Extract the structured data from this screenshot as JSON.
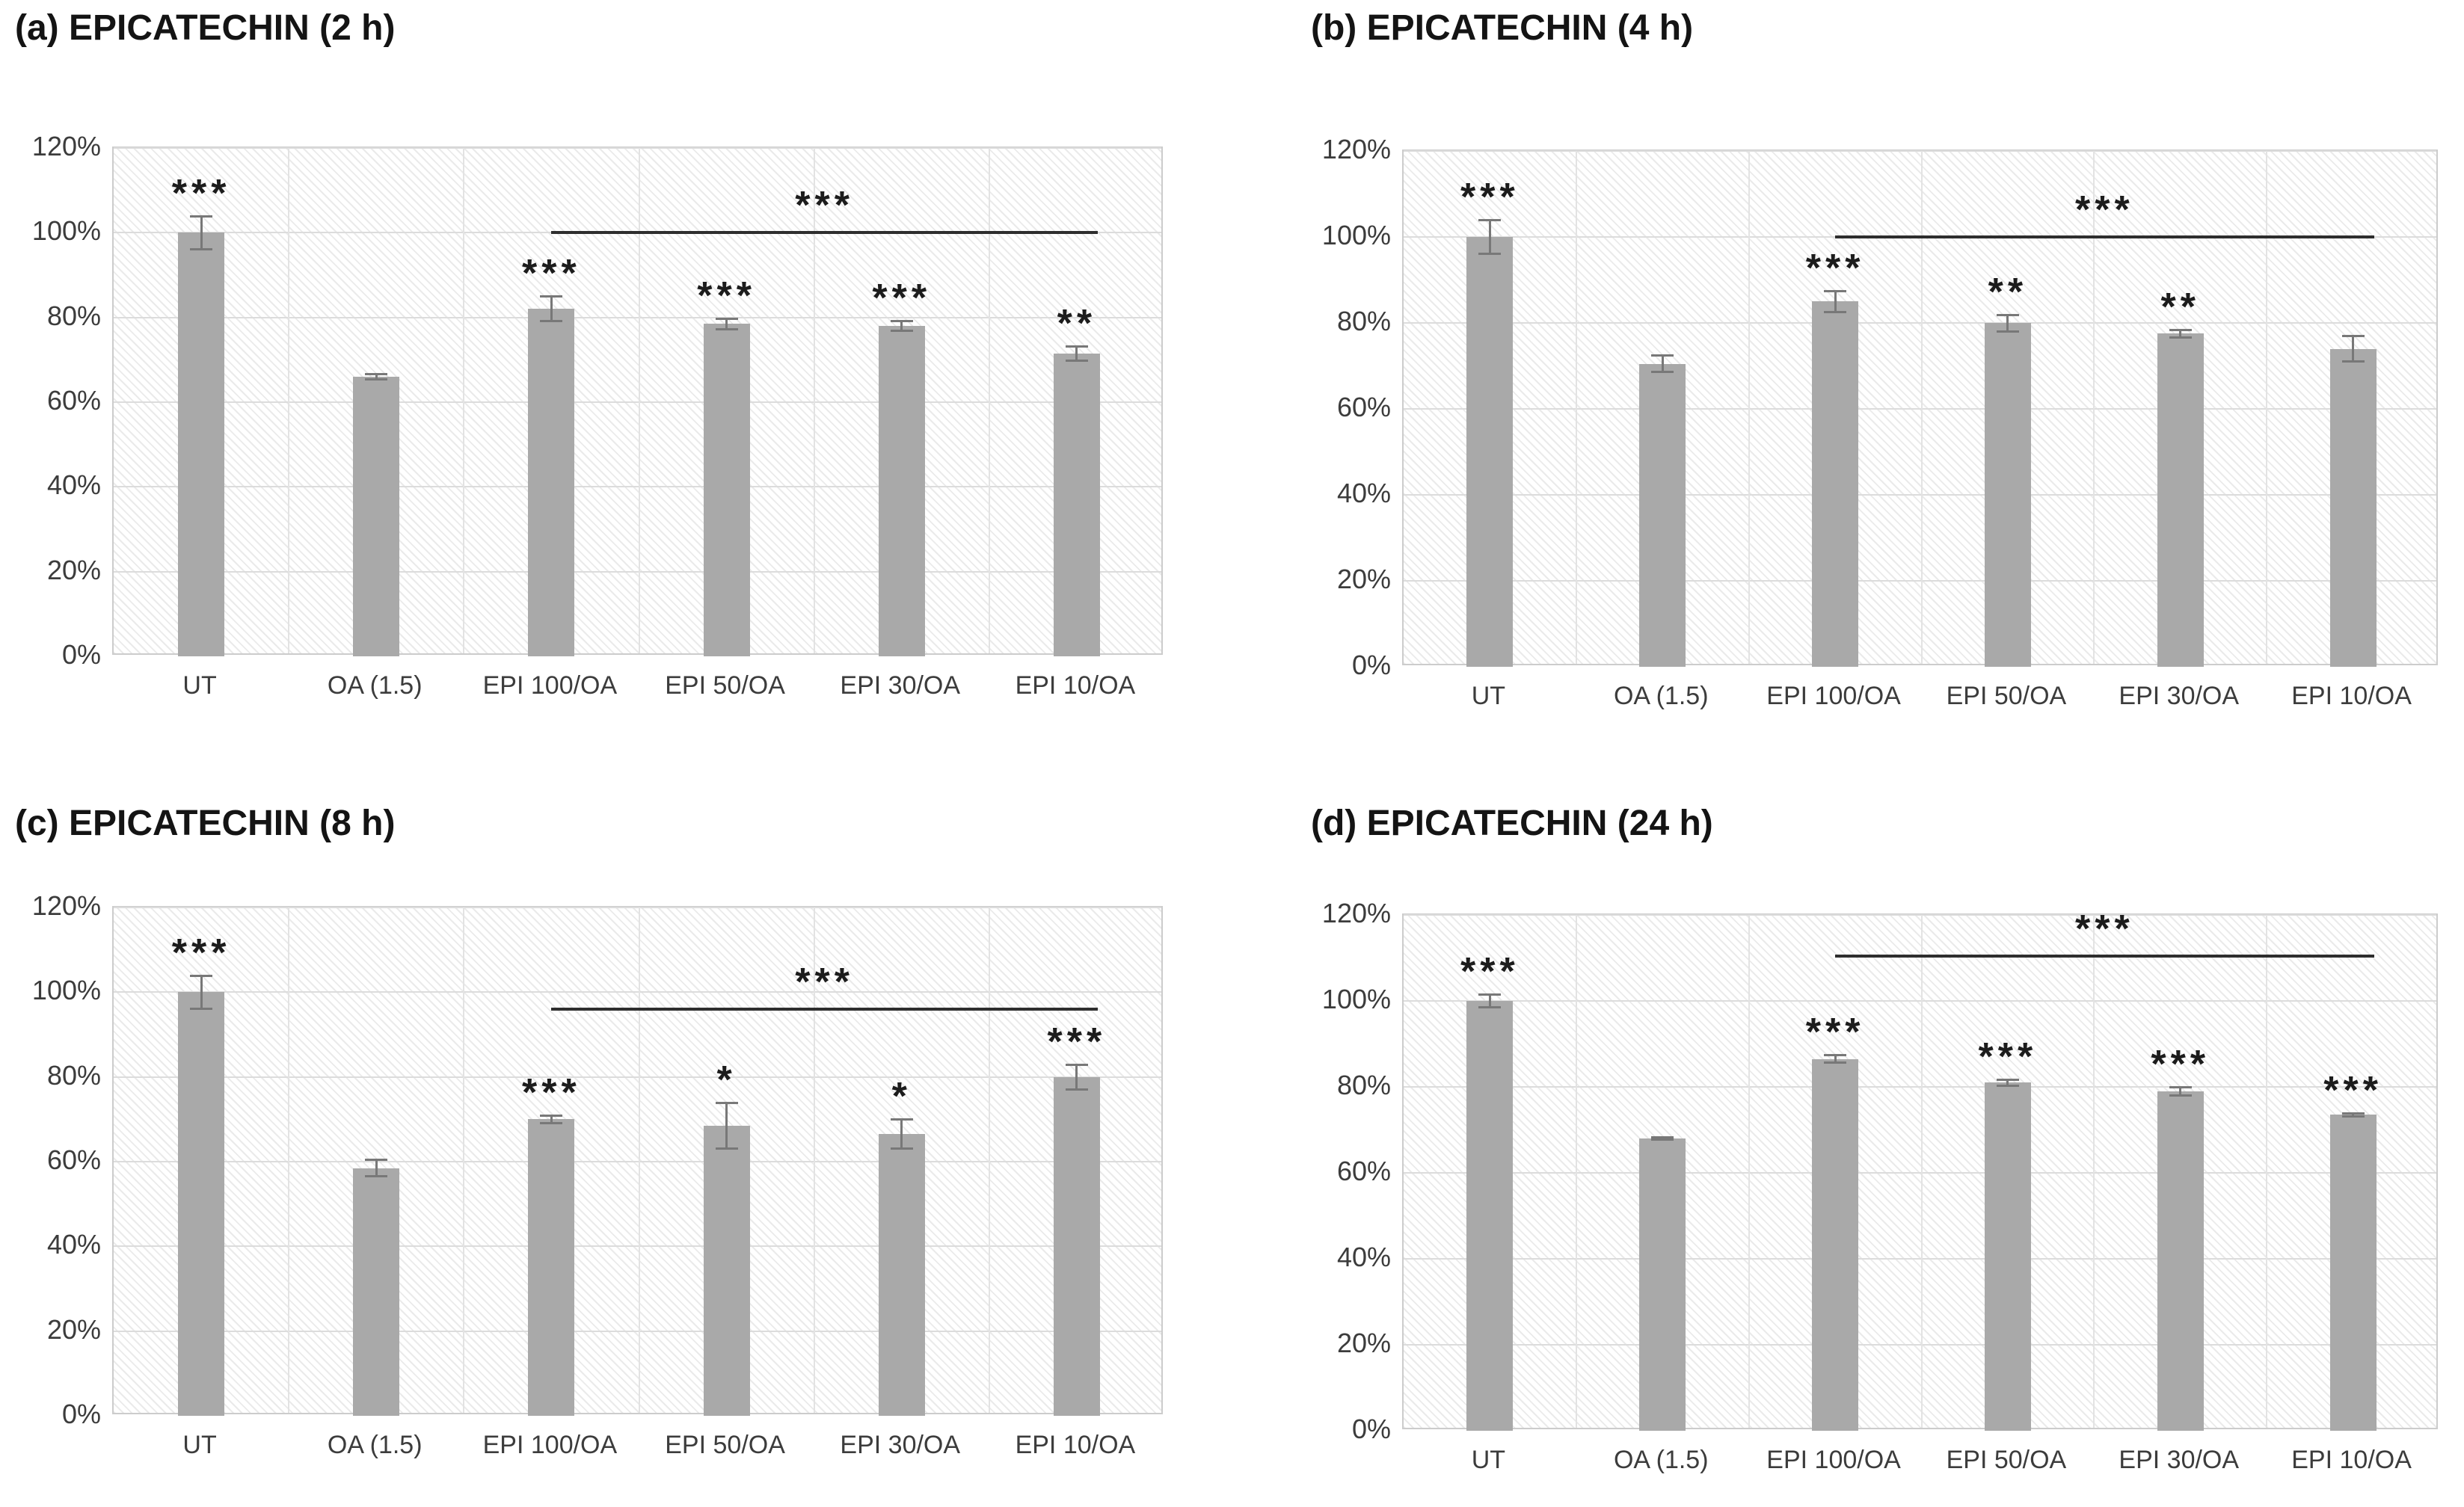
{
  "colors": {
    "bar": "#a9a9a9",
    "error_bar": "#787878",
    "gridline": "#dcdcdc",
    "plot_border": "#cccccc",
    "bracket_line": "#2e2e2e",
    "text": "#3c3c3c",
    "title_text": "#141414"
  },
  "chart_data": [
    {
      "panel": "a",
      "type": "bar",
      "title": "(a) EPICATECHIN (2 h)",
      "categories": [
        "UT",
        "OA (1.5)",
        "EPI 100/OA",
        "EPI 50/OA",
        "EPI 30/OA",
        "EPI 10/OA"
      ],
      "values": [
        100,
        66,
        82,
        78.5,
        78,
        71.5
      ],
      "errors": [
        4,
        0.7,
        3,
        1.3,
        1.3,
        1.8
      ],
      "sig": [
        "***",
        "",
        "***",
        "***",
        "***",
        "**"
      ],
      "bracket": {
        "from_index": 2,
        "to_index": 5,
        "y": 100,
        "label": "***"
      },
      "ylim": [
        0,
        120
      ],
      "ytick_step": 20,
      "ytick_labels": [
        "120%",
        "100%",
        "80%",
        "60%",
        "40%",
        "20%",
        "0%"
      ],
      "grid": true,
      "legend": null
    },
    {
      "panel": "b",
      "type": "bar",
      "title": "(b) EPICATECHIN (4 h)",
      "categories": [
        "UT",
        "OA (1.5)",
        "EPI 100/OA",
        "EPI 50/OA",
        "EPI 30/OA",
        "EPI 10/OA"
      ],
      "values": [
        100,
        70.5,
        85,
        80,
        77.5,
        74
      ],
      "errors": [
        4,
        2,
        2.5,
        2,
        1,
        3
      ],
      "sig": [
        "***",
        "",
        "***",
        "**",
        "**",
        ""
      ],
      "bracket": {
        "from_index": 2,
        "to_index": 5,
        "y": 100,
        "label": "***"
      },
      "ylim": [
        0,
        120
      ],
      "ytick_step": 20,
      "ytick_labels": [
        "120%",
        "100%",
        "80%",
        "60%",
        "40%",
        "20%",
        "0%"
      ],
      "grid": true,
      "legend": null
    },
    {
      "panel": "c",
      "type": "bar",
      "title": "(c) EPICATECHIN (8 h)",
      "categories": [
        "UT",
        "OA (1.5)",
        "EPI 100/OA",
        "EPI 50/OA",
        "EPI 30/OA",
        "EPI 10/OA"
      ],
      "values": [
        100,
        58.5,
        70,
        68.5,
        66.5,
        80
      ],
      "errors": [
        4,
        2,
        1,
        5.5,
        3.5,
        3
      ],
      "sig": [
        "***",
        "",
        "***",
        "*",
        "*",
        "***"
      ],
      "bracket": {
        "from_index": 2,
        "to_index": 5,
        "y": 96,
        "label": "***"
      },
      "ylim": [
        0,
        120
      ],
      "ytick_step": 20,
      "ytick_labels": [
        "120%",
        "100%",
        "80%",
        "60%",
        "40%",
        "20%",
        "0%"
      ],
      "grid": true,
      "legend": null
    },
    {
      "panel": "d",
      "type": "bar",
      "title": "(d) EPICATECHIN (24 h)",
      "categories": [
        "UT",
        "OA (1.5)",
        "EPI 100/OA",
        "EPI 50/OA",
        "EPI 30/OA",
        "EPI 10/OA"
      ],
      "values": [
        100,
        68,
        86.5,
        81,
        79,
        73.5
      ],
      "errors": [
        1.5,
        0.4,
        1,
        0.8,
        1,
        0.4
      ],
      "sig": [
        "***",
        "",
        "***",
        "***",
        "***",
        "***"
      ],
      "bracket": {
        "from_index": 2,
        "to_index": 5,
        "y": 110.5,
        "label": "***"
      },
      "ylim": [
        0,
        120
      ],
      "ytick_step": 20,
      "ytick_labels": [
        "120%",
        "100%",
        "80%",
        "60%",
        "40%",
        "20%",
        "0%"
      ],
      "grid": true,
      "legend": null
    }
  ]
}
